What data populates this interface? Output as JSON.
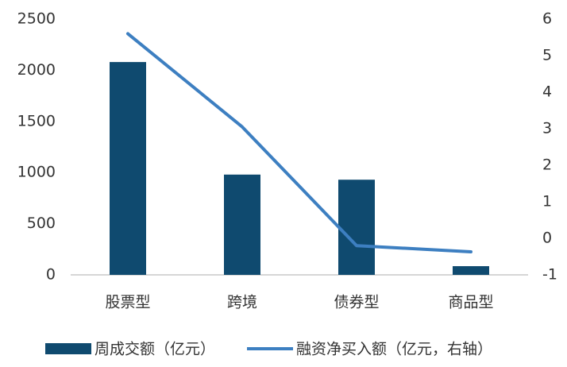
{
  "chart_data": {
    "type": "bar-line",
    "categories": [
      "股票型",
      "跨境",
      "债券型",
      "商品型"
    ],
    "series": [
      {
        "name": "周成交额（亿元）",
        "type": "bar",
        "color": "#0f4a6f",
        "values": [
          2080,
          980,
          930,
          85
        ]
      },
      {
        "name": "融资净买入额（亿元，右轴）",
        "type": "line",
        "axis": "y2",
        "color": "#3d7fc1",
        "values": [
          5.6,
          3.05,
          -0.2,
          -0.37
        ]
      }
    ],
    "ylim": [
      0,
      2500
    ],
    "yticks": [
      0,
      500,
      1000,
      1500,
      2000,
      2500
    ],
    "y2lim": [
      -1,
      6
    ],
    "y2ticks": [
      -1,
      0,
      1,
      2,
      3,
      4,
      5,
      6
    ],
    "grid": false,
    "legend": "bottom"
  }
}
